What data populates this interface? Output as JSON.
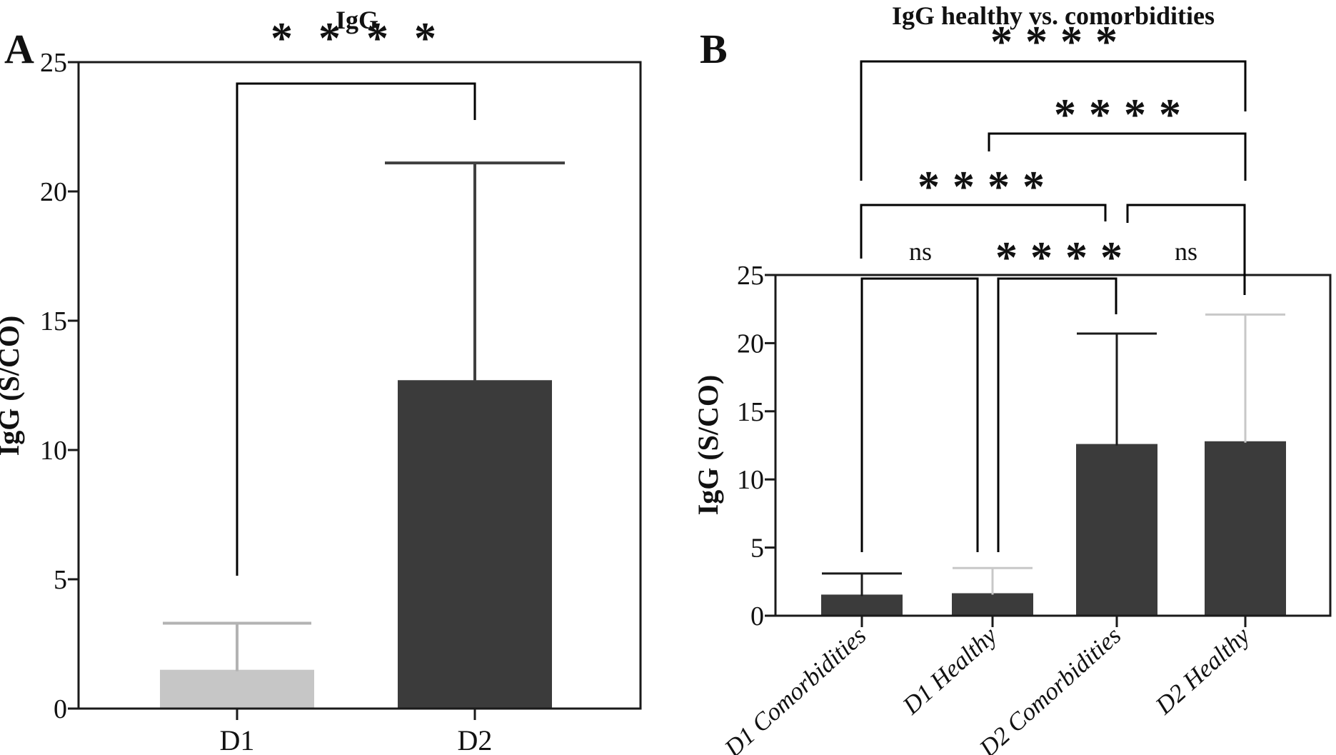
{
  "figure": {
    "kind": "two-panel bar figure with significance brackets",
    "background": "#ffffff",
    "accent_dark": "#3b3b3b",
    "accent_light_gray": "#c6c6c6"
  },
  "chart_data": [
    {
      "type": "bar",
      "panel_label": "A",
      "title": "IgG",
      "ylabel": "IgG (S/CO)",
      "xlabel": "",
      "categories": [
        "D1",
        "D2"
      ],
      "values": [
        1.5,
        12.7
      ],
      "error_upper": [
        3.3,
        21.1
      ],
      "bar_colors": [
        "#c6c6c6",
        "#3b3b3b"
      ],
      "error_colors": [
        "#b3b3b3",
        "#3f3f3f"
      ],
      "ylim": [
        0,
        25
      ],
      "yticks": [
        0,
        5,
        10,
        15,
        20,
        25
      ],
      "grid": false,
      "legend": "none",
      "significance": [
        {
          "groups": [
            "D1",
            "D2"
          ],
          "label": "****"
        }
      ]
    },
    {
      "type": "bar",
      "panel_label": "B",
      "title": "IgG healthy vs. comorbidities",
      "ylabel": "IgG (S/CO)",
      "xlabel": "",
      "categories": [
        "D1 Comorbidities",
        "D1 Healthy",
        "D2 Comorbidities",
        "D2 Healthy"
      ],
      "values": [
        1.55,
        1.65,
        12.6,
        12.8
      ],
      "error_upper": [
        3.1,
        3.5,
        20.7,
        22.1
      ],
      "bar_colors": [
        "#3b3b3b",
        "#3b3b3b",
        "#3b3b3b",
        "#3b3b3b"
      ],
      "error_colors": [
        "#1a1a1a",
        "#c8c8c8",
        "#1a1a1a",
        "#c8c8c8"
      ],
      "ylim": [
        0,
        25
      ],
      "yticks": [
        0,
        5,
        10,
        15,
        20,
        25
      ],
      "grid": false,
      "legend": "none",
      "significance": [
        {
          "groups": [
            "D1 Comorbidities",
            "D2 Healthy"
          ],
          "label": "****"
        },
        {
          "groups": [
            "D1 Healthy",
            "D2 Healthy"
          ],
          "label": "****"
        },
        {
          "groups": [
            "D1 Comorbidities",
            "D2 Comorbidities"
          ],
          "label": "****"
        },
        {
          "groups": [
            "D2 Comorbidities",
            "D2 Healthy"
          ],
          "label": "ns"
        },
        {
          "groups": [
            "D1 Comorbidities",
            "D1 Healthy"
          ],
          "label": "ns"
        },
        {
          "groups": [
            "D1 Healthy",
            "D2 Comorbidities"
          ],
          "label": "****"
        }
      ]
    }
  ]
}
